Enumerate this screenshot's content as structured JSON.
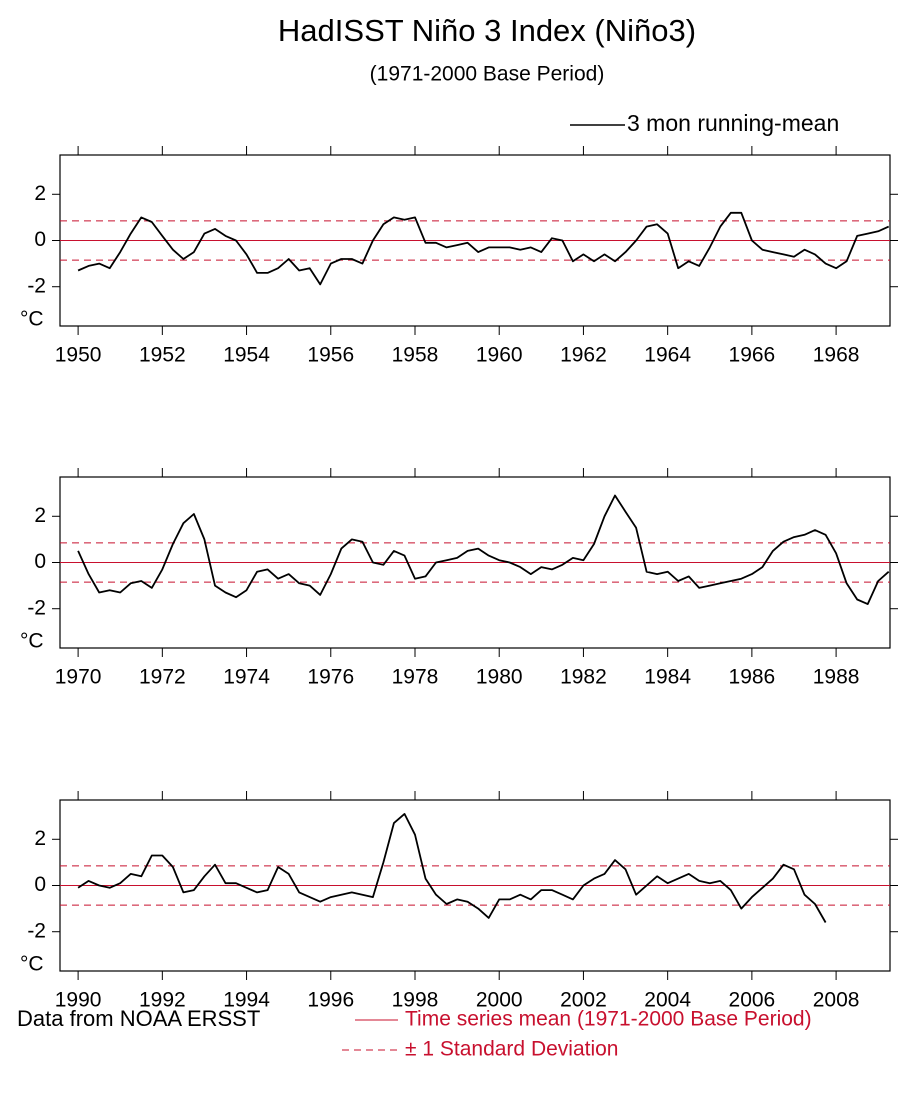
{
  "header": {
    "title": "HadISST Niño 3 Index (Niño3)",
    "subtitle": "(1971-2000 Base Period)"
  },
  "footer": {
    "source": "Data from NOAA ERSST"
  },
  "chart_data": [
    {
      "type": "line",
      "ylabel": "°C",
      "x": [
        1950,
        1950.25,
        1950.5,
        1950.75,
        1951,
        1951.25,
        1951.5,
        1951.75,
        1952,
        1952.25,
        1952.5,
        1952.75,
        1953,
        1953.25,
        1953.5,
        1953.75,
        1954,
        1954.25,
        1954.5,
        1954.75,
        1955,
        1955.25,
        1955.5,
        1955.75,
        1956,
        1956.25,
        1956.5,
        1956.75,
        1957,
        1957.25,
        1957.5,
        1957.75,
        1958,
        1958.25,
        1958.5,
        1958.75,
        1959,
        1959.25,
        1959.5,
        1959.75,
        1960,
        1960.25,
        1960.5,
        1960.75,
        1961,
        1961.25,
        1961.5,
        1961.75,
        1962,
        1962.25,
        1962.5,
        1962.75,
        1963,
        1963.25,
        1963.5,
        1963.75,
        1964,
        1964.25,
        1964.5,
        1964.75,
        1965,
        1965.25,
        1965.5,
        1965.75,
        1966,
        1966.25,
        1966.5,
        1966.75,
        1967,
        1967.25,
        1967.5,
        1967.75,
        1968,
        1968.25,
        1968.5,
        1968.75,
        1969,
        1969.25
      ],
      "series": [
        {
          "name": "3 mon running-mean",
          "color": "#000000",
          "values": [
            -1.3,
            -1.1,
            -1.0,
            -1.2,
            -0.5,
            0.3,
            1.0,
            0.8,
            0.2,
            -0.4,
            -0.8,
            -0.5,
            0.3,
            0.5,
            0.2,
            0.0,
            -0.6,
            -1.4,
            -1.4,
            -1.2,
            -0.8,
            -1.3,
            -1.2,
            -1.9,
            -1.0,
            -0.8,
            -0.8,
            -1.0,
            0.0,
            0.7,
            1.0,
            0.9,
            1.0,
            -0.1,
            -0.1,
            -0.3,
            -0.2,
            -0.1,
            -0.5,
            -0.3,
            -0.3,
            -0.3,
            -0.4,
            -0.3,
            -0.5,
            0.1,
            0.0,
            -0.9,
            -0.6,
            -0.9,
            -0.6,
            -0.9,
            -0.5,
            0.0,
            0.6,
            0.7,
            0.3,
            -1.2,
            -0.9,
            -1.1,
            -0.3,
            0.6,
            1.2,
            1.2,
            0.0,
            -0.4,
            -0.5,
            -0.6,
            -0.7,
            -0.4,
            -0.6,
            -1.0,
            -1.2,
            -0.9,
            0.2,
            0.3,
            0.4,
            0.6
          ]
        }
      ],
      "reference_lines": [
        {
          "name": "Time series mean (1971-2000 Base Period)",
          "value": 0,
          "color": "#c8102e",
          "style": "solid"
        },
        {
          "name": "± 1 Standard Deviation",
          "value": 0.85,
          "color": "#c8102e",
          "style": "dashed"
        },
        {
          "value": -0.85,
          "color": "#c8102e",
          "style": "dashed"
        }
      ],
      "xlim": [
        1949.57,
        1969.28
      ],
      "xticks": [
        1950,
        1952,
        1954,
        1956,
        1958,
        1960,
        1962,
        1964,
        1966,
        1968
      ],
      "ylim": [
        -3.7,
        3.7
      ],
      "yticks": [
        -2,
        0,
        2
      ]
    },
    {
      "type": "line",
      "ylabel": "°C",
      "x": [
        1970,
        1970.25,
        1970.5,
        1970.75,
        1971,
        1971.25,
        1971.5,
        1971.75,
        1972,
        1972.25,
        1972.5,
        1972.75,
        1973,
        1973.25,
        1973.5,
        1973.75,
        1974,
        1974.25,
        1974.5,
        1974.75,
        1975,
        1975.25,
        1975.5,
        1975.75,
        1976,
        1976.25,
        1976.5,
        1976.75,
        1977,
        1977.25,
        1977.5,
        1977.75,
        1978,
        1978.25,
        1978.5,
        1978.75,
        1979,
        1979.25,
        1979.5,
        1979.75,
        1980,
        1980.25,
        1980.5,
        1980.75,
        1981,
        1981.25,
        1981.5,
        1981.75,
        1982,
        1982.25,
        1982.5,
        1982.75,
        1983,
        1983.25,
        1983.5,
        1983.75,
        1984,
        1984.25,
        1984.5,
        1984.75,
        1985,
        1985.25,
        1985.5,
        1985.75,
        1986,
        1986.25,
        1986.5,
        1986.75,
        1987,
        1987.25,
        1987.5,
        1987.75,
        1988,
        1988.25,
        1988.5,
        1988.75,
        1989,
        1989.25
      ],
      "series": [
        {
          "color": "#000000",
          "values": [
            0.5,
            -0.5,
            -1.3,
            -1.2,
            -1.3,
            -0.9,
            -0.8,
            -1.1,
            -0.3,
            0.8,
            1.7,
            2.1,
            1.0,
            -1.0,
            -1.3,
            -1.5,
            -1.2,
            -0.4,
            -0.3,
            -0.7,
            -0.5,
            -0.9,
            -1.0,
            -1.4,
            -0.5,
            0.6,
            1.0,
            0.9,
            0.0,
            -0.1,
            0.5,
            0.3,
            -0.7,
            -0.6,
            0.0,
            0.1,
            0.2,
            0.5,
            0.6,
            0.3,
            0.1,
            0.0,
            -0.2,
            -0.5,
            -0.2,
            -0.3,
            -0.1,
            0.2,
            0.1,
            0.8,
            2.0,
            2.9,
            2.2,
            1.5,
            -0.4,
            -0.5,
            -0.4,
            -0.8,
            -0.6,
            -1.1,
            -1.0,
            -0.9,
            -0.8,
            -0.7,
            -0.5,
            -0.2,
            0.5,
            0.9,
            1.1,
            1.2,
            1.4,
            1.2,
            0.4,
            -0.9,
            -1.6,
            -1.8,
            -0.8,
            -0.4
          ]
        }
      ],
      "reference_lines": [
        {
          "value": 0,
          "color": "#c8102e",
          "style": "solid"
        },
        {
          "value": 0.85,
          "color": "#c8102e",
          "style": "dashed"
        },
        {
          "value": -0.85,
          "color": "#c8102e",
          "style": "dashed"
        }
      ],
      "xlim": [
        1969.57,
        1989.28
      ],
      "xticks": [
        1970,
        1972,
        1974,
        1976,
        1978,
        1980,
        1982,
        1984,
        1986,
        1988
      ],
      "ylim": [
        -3.7,
        3.7
      ],
      "yticks": [
        -2,
        0,
        2
      ]
    },
    {
      "type": "line",
      "ylabel": "°C",
      "x": [
        1990,
        1990.25,
        1990.5,
        1990.75,
        1991,
        1991.25,
        1991.5,
        1991.75,
        1992,
        1992.25,
        1992.5,
        1992.75,
        1993,
        1993.25,
        1993.5,
        1993.75,
        1994,
        1994.25,
        1994.5,
        1994.75,
        1995,
        1995.25,
        1995.5,
        1995.75,
        1996,
        1996.25,
        1996.5,
        1996.75,
        1997,
        1997.25,
        1997.5,
        1997.75,
        1998,
        1998.25,
        1998.5,
        1998.75,
        1999,
        1999.25,
        1999.5,
        1999.75,
        2000,
        2000.25,
        2000.5,
        2000.75,
        2001,
        2001.25,
        2001.5,
        2001.75,
        2002,
        2002.25,
        2002.5,
        2002.75,
        2003,
        2003.25,
        2003.5,
        2003.75,
        2004,
        2004.25,
        2004.5,
        2004.75,
        2005,
        2005.25,
        2005.5,
        2005.75,
        2006,
        2006.25,
        2006.5,
        2006.75,
        2007,
        2007.25,
        2007.5,
        2007.75
      ],
      "series": [
        {
          "color": "#000000",
          "values": [
            -0.1,
            0.2,
            0.0,
            -0.1,
            0.1,
            0.5,
            0.4,
            1.3,
            1.3,
            0.8,
            -0.3,
            -0.2,
            0.4,
            0.9,
            0.1,
            0.1,
            -0.1,
            -0.3,
            -0.2,
            0.8,
            0.5,
            -0.3,
            -0.5,
            -0.7,
            -0.5,
            -0.4,
            -0.3,
            -0.4,
            -0.5,
            1.0,
            2.7,
            3.1,
            2.2,
            0.3,
            -0.4,
            -0.8,
            -0.6,
            -0.7,
            -1.0,
            -1.4,
            -0.6,
            -0.6,
            -0.4,
            -0.6,
            -0.2,
            -0.2,
            -0.4,
            -0.6,
            0.0,
            0.3,
            0.5,
            1.1,
            0.7,
            -0.4,
            0.0,
            0.4,
            0.1,
            0.3,
            0.5,
            0.2,
            0.1,
            0.2,
            -0.2,
            -1.0,
            -0.5,
            -0.1,
            0.3,
            0.9,
            0.7,
            -0.4,
            -0.8,
            -1.6
          ]
        }
      ],
      "reference_lines": [
        {
          "value": 0,
          "color": "#c8102e",
          "style": "solid"
        },
        {
          "value": 0.85,
          "color": "#c8102e",
          "style": "dashed"
        },
        {
          "value": -0.85,
          "color": "#c8102e",
          "style": "dashed"
        }
      ],
      "xlim": [
        1989.57,
        2009.28
      ],
      "xticks": [
        1990,
        1992,
        1994,
        1996,
        1998,
        2000,
        2002,
        2004,
        2006,
        2008
      ],
      "ylim": [
        -3.7,
        3.7
      ],
      "yticks": [
        -2,
        0,
        2
      ]
    }
  ]
}
